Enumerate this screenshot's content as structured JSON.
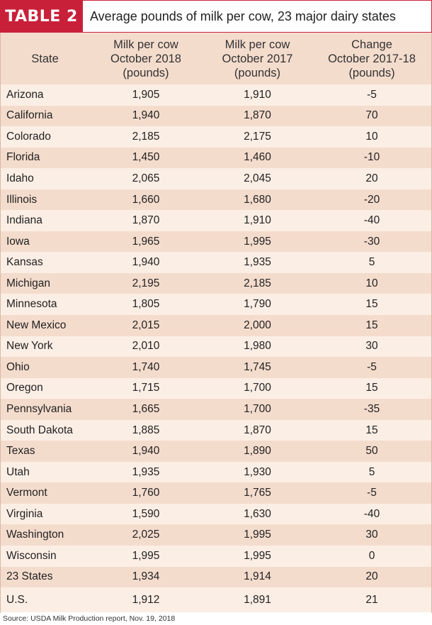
{
  "title": {
    "label": "TABLE 2",
    "description": "Average pounds of milk per cow, 23 major dairy states"
  },
  "columns": [
    "State",
    "Milk per cow\nOctober 2018\n(pounds)",
    "Milk per cow\nOctober 2017\n(pounds)",
    "Change\nOctober 2017-18\n(pounds)"
  ],
  "rows": [
    [
      "Arizona",
      "1,905",
      "1,910",
      "-5"
    ],
    [
      "California",
      "1,940",
      "1,870",
      "70"
    ],
    [
      "Colorado",
      "2,185",
      "2,175",
      "10"
    ],
    [
      "Florida",
      "1,450",
      "1,460",
      "-10"
    ],
    [
      "Idaho",
      "2,065",
      "2,045",
      "20"
    ],
    [
      "Illinois",
      "1,660",
      "1,680",
      "-20"
    ],
    [
      "Indiana",
      "1,870",
      "1,910",
      "-40"
    ],
    [
      "Iowa",
      "1,965",
      "1,995",
      "-30"
    ],
    [
      "Kansas",
      "1,940",
      "1,935",
      "5"
    ],
    [
      "Michigan",
      "2,195",
      "2,185",
      "10"
    ],
    [
      "Minnesota",
      "1,805",
      "1,790",
      "15"
    ],
    [
      "New Mexico",
      "2,015",
      "2,000",
      "15"
    ],
    [
      "New York",
      "2,010",
      "1,980",
      "30"
    ],
    [
      "Ohio",
      "1,740",
      "1,745",
      "-5"
    ],
    [
      "Oregon",
      "1,715",
      "1,700",
      "15"
    ],
    [
      "Pennsylvania",
      "1,665",
      "1,700",
      "-35"
    ],
    [
      "South Dakota",
      "1,885",
      "1,870",
      "15"
    ],
    [
      "Texas",
      "1,940",
      "1,890",
      "50"
    ],
    [
      "Utah",
      "1,935",
      "1,930",
      "5"
    ],
    [
      "Vermont",
      "1,760",
      "1,765",
      "-5"
    ],
    [
      "Virginia",
      "1,590",
      "1,630",
      "-40"
    ],
    [
      "Washington",
      "2,025",
      "1,995",
      "30"
    ],
    [
      "Wisconsin",
      "1,995",
      "1,995",
      "0"
    ],
    [
      "23 States",
      "1,934",
      "1,914",
      "20"
    ],
    [
      "U.S.",
      "1,912",
      "1,891",
      "21"
    ]
  ],
  "source": "Source: USDA Milk Production report, Nov. 19, 2018",
  "colors": {
    "accent": "#c9203a",
    "row_light": "#fbeee5",
    "row_dark": "#f4dccd"
  }
}
